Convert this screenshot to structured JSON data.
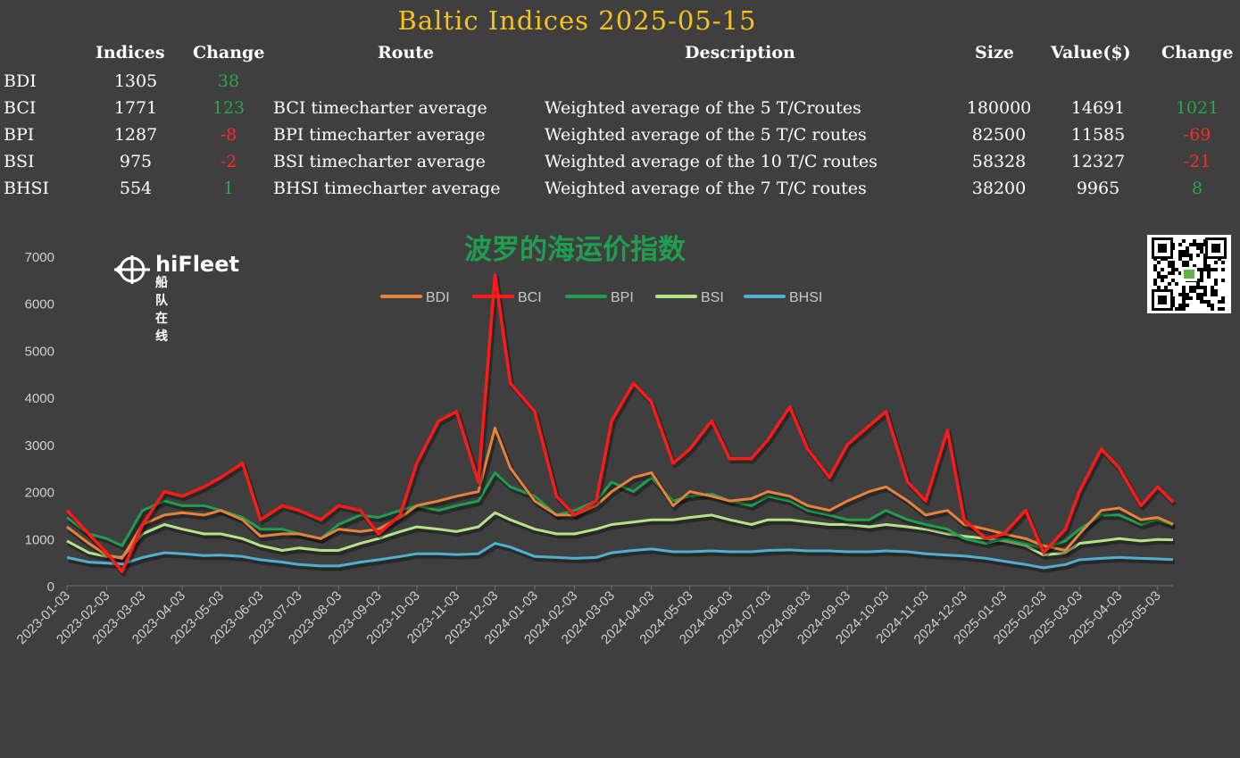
{
  "title": "Baltic Indices 2025-05-15",
  "table": {
    "headers": {
      "indices": "Indices",
      "change": "Change",
      "route": "Route",
      "description": "Description",
      "size": "Size",
      "value": "Value($)",
      "change2": "Change"
    },
    "rows": [
      {
        "name": "BDI",
        "index": "1305",
        "change": "38",
        "change_dir": "up",
        "route": "",
        "description": "",
        "size": "",
        "value": "",
        "value_change": "",
        "value_change_dir": ""
      },
      {
        "name": "BCI",
        "index": "1771",
        "change": "123",
        "change_dir": "up",
        "route": "BCI timecharter average",
        "description": "Weighted average of the 5 T/Croutes",
        "size": "180000",
        "value": "14691",
        "value_change": "1021",
        "value_change_dir": "up"
      },
      {
        "name": "BPI",
        "index": "1287",
        "change": "-8",
        "change_dir": "down",
        "route": "BPI timecharter average",
        "description": "Weighted average of the 5 T/C routes",
        "size": "82500",
        "value": "11585",
        "value_change": "-69",
        "value_change_dir": "down"
      },
      {
        "name": "BSI",
        "index": "975",
        "change": "-2",
        "change_dir": "down",
        "route": "BSI timecharter average",
        "description": "Weighted average of the 10 T/C routes",
        "size": "58328",
        "value": "12327",
        "value_change": "-21",
        "value_change_dir": "down"
      },
      {
        "name": "BHSI",
        "index": "554",
        "change": "1",
        "change_dir": "up",
        "route": "BHSI timecharter average",
        "description": "Weighted average of the 7 T/C routes",
        "size": "38200",
        "value": "9965",
        "value_change": "8",
        "value_change_dir": "up"
      }
    ]
  },
  "chart_title": "波罗的海运价指数",
  "logo": {
    "name": "hiFleet",
    "sub": "船队在线"
  },
  "icons": {
    "logo": "hifleet-logo-icon",
    "qr": "qr-code-icon"
  },
  "colors": {
    "BDI": "#e8823a",
    "BCI": "#ff1a1a",
    "BPI": "#1f9e50",
    "BSI": "#b5e38a",
    "BHSI": "#4fb0cf",
    "up": "#2aa84a",
    "down": "#ff2a2a",
    "title": "#f6c21b"
  },
  "chart_data": {
    "type": "line",
    "title": "波罗的海运价指数",
    "ylim": [
      0,
      7000
    ],
    "yticks": [
      0,
      1000,
      2000,
      3000,
      4000,
      5000,
      6000,
      7000
    ],
    "xlim": [
      "2023-01-03",
      "2025-05-15"
    ],
    "xticks": [
      "2023-01-03",
      "2023-02-03",
      "2023-03-03",
      "2023-04-03",
      "2023-05-03",
      "2023-06-03",
      "2023-07-03",
      "2023-08-03",
      "2023-09-03",
      "2023-10-03",
      "2023-11-03",
      "2023-12-03",
      "2024-01-03",
      "2024-02-03",
      "2024-03-03",
      "2024-04-03",
      "2024-05-03",
      "2024-06-03",
      "2024-07-03",
      "2024-08-03",
      "2024-09-03",
      "2024-10-03",
      "2024-11-03",
      "2024-12-03",
      "2025-01-03",
      "2025-02-03",
      "2025-03-03",
      "2025-04-03",
      "2025-05-03"
    ],
    "legend_position": "top",
    "series": [
      {
        "name": "BDI",
        "x": [
          "2023-01-03",
          "2023-01-20",
          "2023-02-03",
          "2023-02-15",
          "2023-03-03",
          "2023-03-20",
          "2023-04-03",
          "2023-04-20",
          "2023-05-03",
          "2023-05-20",
          "2023-06-03",
          "2023-06-20",
          "2023-07-03",
          "2023-07-20",
          "2023-08-03",
          "2023-08-20",
          "2023-09-03",
          "2023-09-20",
          "2023-10-03",
          "2023-10-20",
          "2023-11-03",
          "2023-11-20",
          "2023-12-03",
          "2023-12-15",
          "2024-01-03",
          "2024-01-20",
          "2024-02-03",
          "2024-02-20",
          "2024-03-03",
          "2024-03-20",
          "2024-04-03",
          "2024-04-20",
          "2024-05-03",
          "2024-05-20",
          "2024-06-03",
          "2024-06-20",
          "2024-07-03",
          "2024-07-20",
          "2024-08-03",
          "2024-08-20",
          "2024-09-03",
          "2024-09-20",
          "2024-10-03",
          "2024-10-20",
          "2024-11-03",
          "2024-11-20",
          "2024-12-03",
          "2024-12-20",
          "2025-01-03",
          "2025-01-20",
          "2025-02-03",
          "2025-02-20",
          "2025-03-03",
          "2025-03-20",
          "2025-04-03",
          "2025-04-20",
          "2025-05-03",
          "2025-05-15"
        ],
        "y": [
          1250,
          900,
          650,
          580,
          1300,
          1500,
          1550,
          1500,
          1600,
          1400,
          1050,
          1100,
          1100,
          1000,
          1200,
          1150,
          1200,
          1450,
          1700,
          1800,
          1900,
          2000,
          3350,
          2500,
          1800,
          1500,
          1500,
          1700,
          2000,
          2300,
          2400,
          1700,
          2000,
          1900,
          1800,
          1850,
          2000,
          1900,
          1700,
          1600,
          1800,
          2000,
          2100,
          1800,
          1500,
          1600,
          1300,
          1200,
          1100,
          1000,
          850,
          750,
          1100,
          1600,
          1650,
          1400,
          1450,
          1305
        ]
      },
      {
        "name": "BCI",
        "x": [
          "2023-01-03",
          "2023-01-20",
          "2023-02-03",
          "2023-02-15",
          "2023-03-03",
          "2023-03-20",
          "2023-04-03",
          "2023-04-20",
          "2023-05-03",
          "2023-05-20",
          "2023-06-03",
          "2023-06-20",
          "2023-07-03",
          "2023-07-20",
          "2023-08-03",
          "2023-08-20",
          "2023-09-03",
          "2023-09-20",
          "2023-10-03",
          "2023-10-20",
          "2023-11-03",
          "2023-11-20",
          "2023-12-03",
          "2023-12-15",
          "2024-01-03",
          "2024-01-20",
          "2024-02-03",
          "2024-02-20",
          "2024-03-03",
          "2024-03-20",
          "2024-04-03",
          "2024-04-20",
          "2024-05-03",
          "2024-05-20",
          "2024-06-03",
          "2024-06-20",
          "2024-07-03",
          "2024-07-20",
          "2024-08-03",
          "2024-08-20",
          "2024-09-03",
          "2024-09-20",
          "2024-10-03",
          "2024-10-20",
          "2024-11-03",
          "2024-11-20",
          "2024-12-03",
          "2024-12-20",
          "2025-01-03",
          "2025-01-20",
          "2025-02-03",
          "2025-02-20",
          "2025-03-03",
          "2025-03-20",
          "2025-04-03",
          "2025-04-20",
          "2025-05-03",
          "2025-05-15"
        ],
        "y": [
          1600,
          1100,
          700,
          300,
          1300,
          2000,
          1900,
          2100,
          2300,
          2600,
          1400,
          1700,
          1600,
          1400,
          1700,
          1600,
          1100,
          1500,
          2600,
          3500,
          3700,
          2200,
          6600,
          4300,
          3700,
          1900,
          1500,
          1800,
          3500,
          4300,
          3900,
          2600,
          2900,
          3500,
          2700,
          2700,
          3100,
          3800,
          2900,
          2300,
          3000,
          3400,
          3700,
          2200,
          1800,
          3300,
          1400,
          1000,
          1100,
          1600,
          700,
          1200,
          2000,
          2900,
          2500,
          1700,
          2100,
          1771
        ]
      },
      {
        "name": "BPI",
        "x": [
          "2023-01-03",
          "2023-01-20",
          "2023-02-03",
          "2023-02-15",
          "2023-03-03",
          "2023-03-20",
          "2023-04-03",
          "2023-04-20",
          "2023-05-03",
          "2023-05-20",
          "2023-06-03",
          "2023-06-20",
          "2023-07-03",
          "2023-07-20",
          "2023-08-03",
          "2023-08-20",
          "2023-09-03",
          "2023-09-20",
          "2023-10-03",
          "2023-10-20",
          "2023-11-03",
          "2023-11-20",
          "2023-12-03",
          "2023-12-15",
          "2024-01-03",
          "2024-01-20",
          "2024-02-03",
          "2024-02-20",
          "2024-03-03",
          "2024-03-20",
          "2024-04-03",
          "2024-04-20",
          "2024-05-03",
          "2024-05-20",
          "2024-06-03",
          "2024-06-20",
          "2024-07-03",
          "2024-07-20",
          "2024-08-03",
          "2024-08-20",
          "2024-09-03",
          "2024-09-20",
          "2024-10-03",
          "2024-10-20",
          "2024-11-03",
          "2024-11-20",
          "2024-12-03",
          "2024-12-20",
          "2025-01-03",
          "2025-01-20",
          "2025-02-03",
          "2025-02-20",
          "2025-03-03",
          "2025-03-20",
          "2025-04-03",
          "2025-04-20",
          "2025-05-03",
          "2025-05-15"
        ],
        "y": [
          1450,
          1100,
          1000,
          850,
          1600,
          1800,
          1700,
          1700,
          1600,
          1450,
          1200,
          1200,
          1100,
          1000,
          1300,
          1500,
          1450,
          1600,
          1700,
          1600,
          1700,
          1800,
          2400,
          2100,
          1900,
          1500,
          1600,
          1800,
          2200,
          2000,
          2300,
          1800,
          1900,
          1950,
          1800,
          1700,
          1900,
          1800,
          1600,
          1500,
          1400,
          1400,
          1600,
          1400,
          1300,
          1200,
          1000,
          900,
          1000,
          900,
          800,
          950,
          1200,
          1500,
          1500,
          1300,
          1400,
          1287
        ]
      },
      {
        "name": "BSI",
        "x": [
          "2023-01-03",
          "2023-01-20",
          "2023-02-03",
          "2023-02-15",
          "2023-03-03",
          "2023-03-20",
          "2023-04-03",
          "2023-04-20",
          "2023-05-03",
          "2023-05-20",
          "2023-06-03",
          "2023-06-20",
          "2023-07-03",
          "2023-07-20",
          "2023-08-03",
          "2023-08-20",
          "2023-09-03",
          "2023-09-20",
          "2023-10-03",
          "2023-10-20",
          "2023-11-03",
          "2023-11-20",
          "2023-12-03",
          "2023-12-15",
          "2024-01-03",
          "2024-01-20",
          "2024-02-03",
          "2024-02-20",
          "2024-03-03",
          "2024-03-20",
          "2024-04-03",
          "2024-04-20",
          "2024-05-03",
          "2024-05-20",
          "2024-06-03",
          "2024-06-20",
          "2024-07-03",
          "2024-07-20",
          "2024-08-03",
          "2024-08-20",
          "2024-09-03",
          "2024-09-20",
          "2024-10-03",
          "2024-10-20",
          "2024-11-03",
          "2024-11-20",
          "2024-12-03",
          "2024-12-20",
          "2025-01-03",
          "2025-01-20",
          "2025-02-03",
          "2025-02-20",
          "2025-03-03",
          "2025-03-20",
          "2025-04-03",
          "2025-04-20",
          "2025-05-03",
          "2025-05-15"
        ],
        "y": [
          950,
          700,
          620,
          600,
          1100,
          1300,
          1200,
          1100,
          1100,
          1000,
          850,
          750,
          800,
          750,
          750,
          900,
          1000,
          1150,
          1250,
          1200,
          1150,
          1250,
          1550,
          1400,
          1200,
          1100,
          1100,
          1200,
          1300,
          1350,
          1400,
          1400,
          1450,
          1500,
          1400,
          1300,
          1400,
          1400,
          1350,
          1300,
          1300,
          1250,
          1300,
          1250,
          1200,
          1100,
          1050,
          1000,
          950,
          850,
          650,
          700,
          900,
          950,
          1000,
          950,
          980,
          975
        ]
      },
      {
        "name": "BHSI",
        "x": [
          "2023-01-03",
          "2023-01-20",
          "2023-02-03",
          "2023-02-15",
          "2023-03-03",
          "2023-03-20",
          "2023-04-03",
          "2023-04-20",
          "2023-05-03",
          "2023-05-20",
          "2023-06-03",
          "2023-06-20",
          "2023-07-03",
          "2023-07-20",
          "2023-08-03",
          "2023-08-20",
          "2023-09-03",
          "2023-09-20",
          "2023-10-03",
          "2023-10-20",
          "2023-11-03",
          "2023-11-20",
          "2023-12-03",
          "2023-12-15",
          "2024-01-03",
          "2024-01-20",
          "2024-02-03",
          "2024-02-20",
          "2024-03-03",
          "2024-03-20",
          "2024-04-03",
          "2024-04-20",
          "2024-05-03",
          "2024-05-20",
          "2024-06-03",
          "2024-06-20",
          "2024-07-03",
          "2024-07-20",
          "2024-08-03",
          "2024-08-20",
          "2024-09-03",
          "2024-09-20",
          "2024-10-03",
          "2024-10-20",
          "2024-11-03",
          "2024-11-20",
          "2024-12-03",
          "2024-12-20",
          "2025-01-03",
          "2025-01-20",
          "2025-02-03",
          "2025-02-20",
          "2025-03-03",
          "2025-03-20",
          "2025-04-03",
          "2025-04-20",
          "2025-05-03",
          "2025-05-15"
        ],
        "y": [
          600,
          500,
          480,
          460,
          600,
          700,
          680,
          640,
          650,
          620,
          550,
          500,
          450,
          420,
          420,
          500,
          550,
          620,
          680,
          680,
          660,
          680,
          900,
          820,
          620,
          600,
          580,
          600,
          700,
          750,
          780,
          720,
          720,
          740,
          720,
          720,
          750,
          760,
          740,
          740,
          720,
          720,
          740,
          720,
          680,
          650,
          630,
          580,
          520,
          450,
          380,
          450,
          550,
          580,
          600,
          580,
          570,
          554
        ]
      }
    ]
  }
}
